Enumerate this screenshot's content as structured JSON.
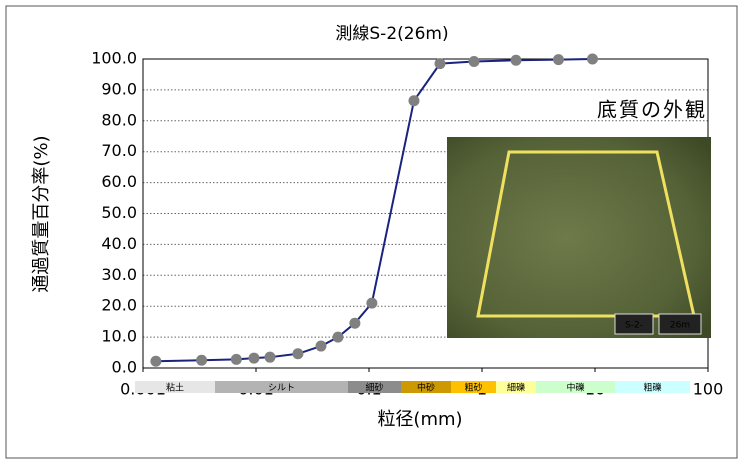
{
  "chart_data": {
    "type": "line",
    "title": "測線S-2(26m)",
    "x_label": "粒径(mm)",
    "y_label": "通過質量百分率(%)",
    "log_x": true,
    "grid": true,
    "xlim": [
      0.001,
      100
    ],
    "xticks": [
      0.001,
      0.01,
      0.1,
      1,
      10,
      100
    ],
    "ylim": [
      0,
      100
    ],
    "yticks": [
      {
        "value": 0,
        "label": "0.0"
      },
      {
        "value": 10,
        "label": "10.0"
      },
      {
        "value": 20,
        "label": "20.0"
      },
      {
        "value": 30,
        "label": "30.0"
      },
      {
        "value": 40,
        "label": "40.0"
      },
      {
        "value": 50,
        "label": "50.0"
      },
      {
        "value": 60,
        "label": "60.0"
      },
      {
        "value": 70,
        "label": "70.0"
      },
      {
        "value": 80,
        "label": "80.0"
      },
      {
        "value": 90,
        "label": "90.0"
      },
      {
        "value": 100,
        "label": "100.0"
      }
    ],
    "x": [
      0.0013,
      0.0033,
      0.0067,
      0.0096,
      0.0133,
      0.0235,
      0.0376,
      0.0532,
      0.075,
      0.106,
      0.25,
      0.425,
      0.85,
      2,
      4.75,
      9.5
    ],
    "series": [
      {
        "color": "#1a237e",
        "marker_color": "#808080",
        "values": [
          2.2,
          2.5,
          2.8,
          3.2,
          3.5,
          4.6,
          7.1,
          10.0,
          14.5,
          21.0,
          86.5,
          98.5,
          99.2,
          99.6,
          99.8,
          100.0
        ]
      }
    ],
    "soil_classes": [
      {
        "label": "粘土",
        "color": "#e6e6e6"
      },
      {
        "label": "シルト",
        "color": "#b3b3b3"
      },
      {
        "label": "細砂",
        "color": "#8c8c8c"
      },
      {
        "label": "中砂",
        "color": "#cc9900"
      },
      {
        "label": "粗砂",
        "color": "#ffc000"
      },
      {
        "label": "細礫",
        "color": "#ffff99"
      },
      {
        "label": "中礫",
        "color": "#ccffcc"
      },
      {
        "label": "粗礫",
        "color": "#ccffff"
      }
    ],
    "inset": {
      "title": "底質の外観",
      "tags": [
        "S-2-",
        "26m"
      ]
    }
  }
}
